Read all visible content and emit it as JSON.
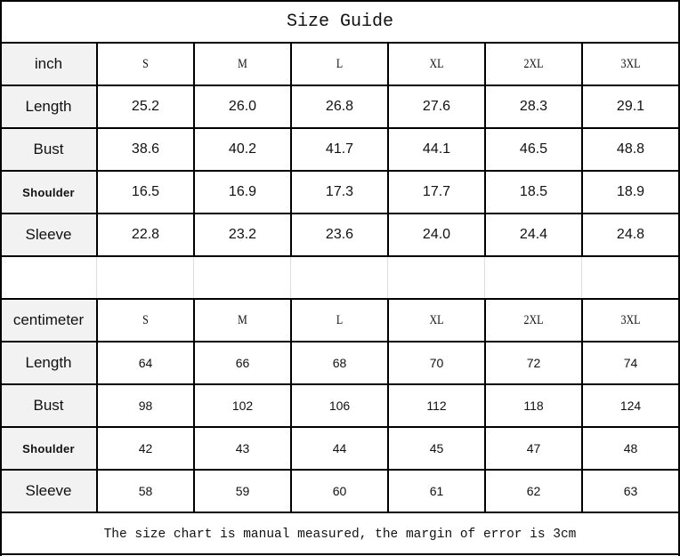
{
  "title": "Size Guide",
  "sizes": [
    "S",
    "M",
    "L",
    "XL",
    "2XL",
    "3XL"
  ],
  "inch": {
    "unit_label": "inch",
    "rows": [
      {
        "label": "Length",
        "values": [
          "25.2",
          "26.0",
          "26.8",
          "27.6",
          "28.3",
          "29.1"
        ]
      },
      {
        "label": "Bust",
        "values": [
          "38.6",
          "40.2",
          "41.7",
          "44.1",
          "46.5",
          "48.8"
        ]
      },
      {
        "label": "Shoulder",
        "values": [
          "16.5",
          "16.9",
          "17.3",
          "17.7",
          "18.5",
          "18.9"
        ]
      },
      {
        "label": "Sleeve",
        "values": [
          "22.8",
          "23.2",
          "23.6",
          "24.0",
          "24.4",
          "24.8"
        ]
      }
    ]
  },
  "centimeter": {
    "unit_label": "centimeter",
    "rows": [
      {
        "label": "Length",
        "values": [
          "64",
          "66",
          "68",
          "70",
          "72",
          "74"
        ]
      },
      {
        "label": "Bust",
        "values": [
          "98",
          "102",
          "106",
          "112",
          "118",
          "124"
        ]
      },
      {
        "label": "Shoulder",
        "values": [
          "42",
          "43",
          "44",
          "45",
          "47",
          "48"
        ]
      },
      {
        "label": "Sleeve",
        "values": [
          "58",
          "59",
          "60",
          "61",
          "62",
          "63"
        ]
      }
    ]
  },
  "note": "The size chart is manual measured, the margin of error is 3cm",
  "colors": {
    "label_bg": "#f2f2f2",
    "border": "#000000"
  }
}
